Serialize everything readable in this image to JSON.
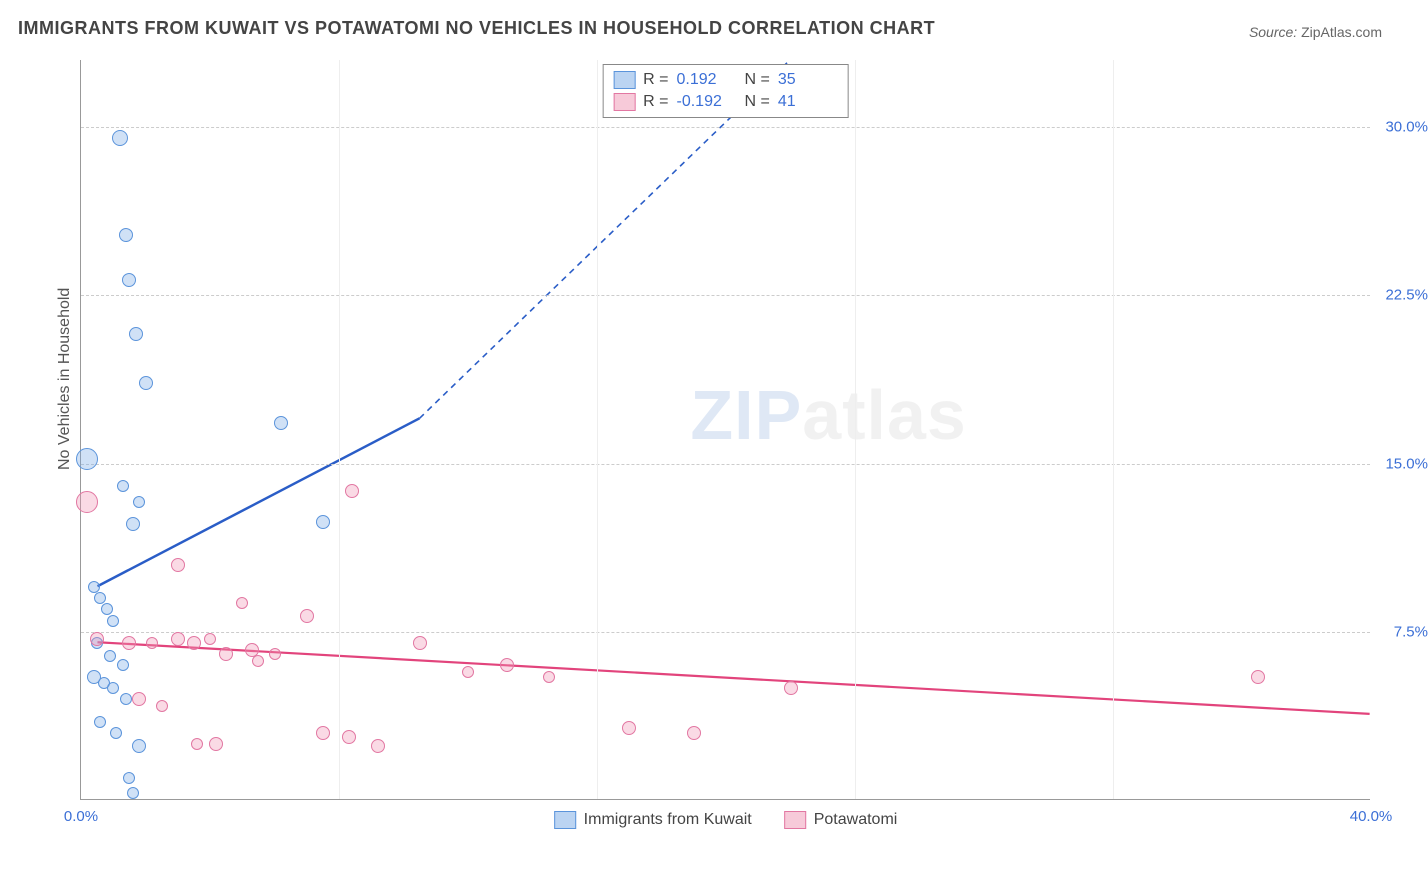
{
  "title": "IMMIGRANTS FROM KUWAIT VS POTAWATOMI NO VEHICLES IN HOUSEHOLD CORRELATION CHART",
  "source_label": "Source:",
  "source_name": "ZipAtlas.com",
  "ylabel": "No Vehicles in Household",
  "watermark_a": "ZIP",
  "watermark_b": "atlas",
  "chart": {
    "type": "scatter",
    "xlim": [
      0,
      40
    ],
    "ylim": [
      0,
      33
    ],
    "background_color": "#ffffff",
    "grid_color": "#cccccc",
    "axis_tick_color": "#3b6fd6",
    "yticks": [
      7.5,
      15.0,
      22.5,
      30.0
    ],
    "ytick_labels": [
      "7.5%",
      "15.0%",
      "22.5%",
      "30.0%"
    ],
    "xticks": [
      0,
      40
    ],
    "xtick_labels": [
      "0.0%",
      "40.0%"
    ],
    "xgrid_positions": [
      8,
      16,
      24,
      32
    ],
    "series": [
      {
        "name": "Immigrants from Kuwait",
        "color_fill": "rgba(120,170,230,0.35)",
        "color_stroke": "#5b94db",
        "legend_swatch": "#9ec3ec",
        "R": "0.192",
        "N": "35",
        "marker_size": 14,
        "trend": {
          "x1": 0.5,
          "y1": 9.5,
          "x2": 10.5,
          "y2": 17.0,
          "dash_x2": 22,
          "dash_y2": 33,
          "color": "#2a5dc7",
          "width": 2.5
        },
        "points": [
          {
            "x": 1.2,
            "y": 29.5,
            "r": 16
          },
          {
            "x": 1.4,
            "y": 25.2,
            "r": 14
          },
          {
            "x": 1.5,
            "y": 23.2,
            "r": 14
          },
          {
            "x": 1.7,
            "y": 20.8,
            "r": 14
          },
          {
            "x": 2.0,
            "y": 18.6,
            "r": 14
          },
          {
            "x": 6.2,
            "y": 16.8,
            "r": 14
          },
          {
            "x": 0.2,
            "y": 15.2,
            "r": 22
          },
          {
            "x": 1.3,
            "y": 14.0,
            "r": 12
          },
          {
            "x": 1.8,
            "y": 13.3,
            "r": 12
          },
          {
            "x": 1.6,
            "y": 12.3,
            "r": 14
          },
          {
            "x": 7.5,
            "y": 12.4,
            "r": 14
          },
          {
            "x": 0.4,
            "y": 9.5,
            "r": 12
          },
          {
            "x": 0.6,
            "y": 9.0,
            "r": 12
          },
          {
            "x": 0.8,
            "y": 8.5,
            "r": 12
          },
          {
            "x": 1.0,
            "y": 8.0,
            "r": 12
          },
          {
            "x": 0.5,
            "y": 7.0,
            "r": 12
          },
          {
            "x": 0.9,
            "y": 6.4,
            "r": 12
          },
          {
            "x": 1.3,
            "y": 6.0,
            "r": 12
          },
          {
            "x": 0.4,
            "y": 5.5,
            "r": 14
          },
          {
            "x": 0.7,
            "y": 5.2,
            "r": 12
          },
          {
            "x": 1.0,
            "y": 5.0,
            "r": 12
          },
          {
            "x": 1.4,
            "y": 4.5,
            "r": 12
          },
          {
            "x": 0.6,
            "y": 3.5,
            "r": 12
          },
          {
            "x": 1.1,
            "y": 3.0,
            "r": 12
          },
          {
            "x": 1.8,
            "y": 2.4,
            "r": 14
          },
          {
            "x": 1.5,
            "y": 1.0,
            "r": 12
          },
          {
            "x": 1.6,
            "y": 0.3,
            "r": 12
          }
        ]
      },
      {
        "name": "Potawatomi",
        "color_fill": "rgba(240,150,180,0.35)",
        "color_stroke": "#e277a2",
        "legend_swatch": "#f3b6cd",
        "R": "-0.192",
        "N": "41",
        "marker_size": 14,
        "trend": {
          "x1": 0.5,
          "y1": 7.0,
          "x2": 40,
          "y2": 3.8,
          "color": "#e2447c",
          "width": 2.2
        },
        "points": [
          {
            "x": 0.2,
            "y": 13.3,
            "r": 22
          },
          {
            "x": 8.4,
            "y": 13.8,
            "r": 14
          },
          {
            "x": 3.0,
            "y": 10.5,
            "r": 14
          },
          {
            "x": 5.0,
            "y": 8.8,
            "r": 12
          },
          {
            "x": 0.5,
            "y": 7.2,
            "r": 14
          },
          {
            "x": 1.5,
            "y": 7.0,
            "r": 14
          },
          {
            "x": 2.2,
            "y": 7.0,
            "r": 12
          },
          {
            "x": 3.0,
            "y": 7.2,
            "r": 14
          },
          {
            "x": 3.5,
            "y": 7.0,
            "r": 14
          },
          {
            "x": 4.0,
            "y": 7.2,
            "r": 12
          },
          {
            "x": 4.5,
            "y": 6.5,
            "r": 14
          },
          {
            "x": 5.3,
            "y": 6.7,
            "r": 14
          },
          {
            "x": 5.5,
            "y": 6.2,
            "r": 12
          },
          {
            "x": 6.0,
            "y": 6.5,
            "r": 12
          },
          {
            "x": 7.0,
            "y": 8.2,
            "r": 14
          },
          {
            "x": 10.5,
            "y": 7.0,
            "r": 14
          },
          {
            "x": 13.2,
            "y": 6.0,
            "r": 14
          },
          {
            "x": 12.0,
            "y": 5.7,
            "r": 12
          },
          {
            "x": 14.5,
            "y": 5.5,
            "r": 12
          },
          {
            "x": 1.8,
            "y": 4.5,
            "r": 14
          },
          {
            "x": 2.5,
            "y": 4.2,
            "r": 12
          },
          {
            "x": 3.6,
            "y": 2.5,
            "r": 12
          },
          {
            "x": 4.2,
            "y": 2.5,
            "r": 14
          },
          {
            "x": 7.5,
            "y": 3.0,
            "r": 14
          },
          {
            "x": 8.3,
            "y": 2.8,
            "r": 14
          },
          {
            "x": 9.2,
            "y": 2.4,
            "r": 14
          },
          {
            "x": 17.0,
            "y": 3.2,
            "r": 14
          },
          {
            "x": 19.0,
            "y": 3.0,
            "r": 14
          },
          {
            "x": 22.0,
            "y": 5.0,
            "r": 14
          },
          {
            "x": 36.5,
            "y": 5.5,
            "r": 14
          }
        ]
      }
    ]
  },
  "legend_bottom": [
    {
      "label": "Immigrants from Kuwait",
      "class": "sw-blue"
    },
    {
      "label": "Potawatomi",
      "class": "sw-pink"
    }
  ],
  "legend_top_cols": {
    "r_label": "R =",
    "n_label": "N ="
  }
}
